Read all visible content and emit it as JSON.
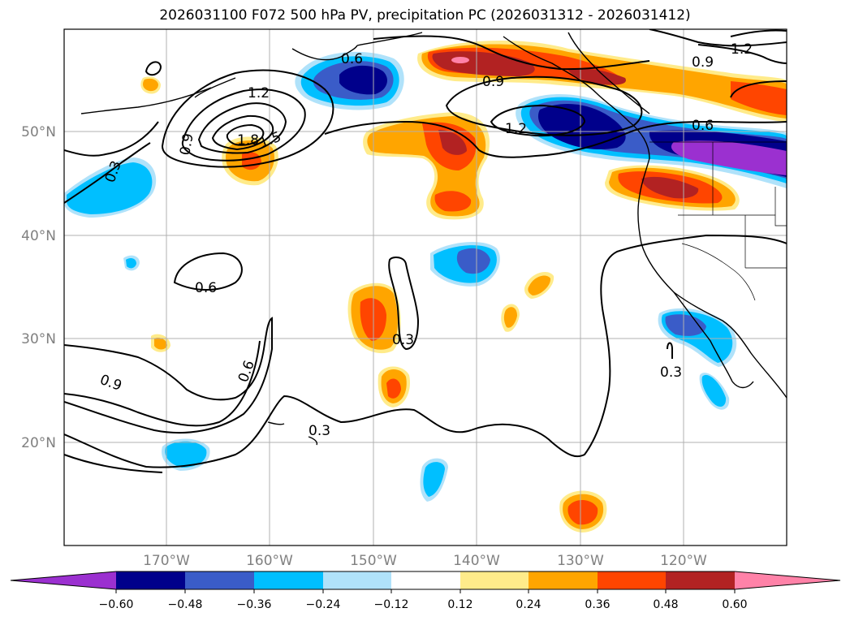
{
  "title": "2026031100 F072 500 hPa PV, precipitation PC (2026031312 - 2026031412)",
  "map": {
    "lat_labels": [
      "50°N",
      "40°N",
      "30°N",
      "20°N"
    ],
    "lon_labels": [
      "170°W",
      "160°W",
      "150°W",
      "140°W",
      "130°W",
      "120°W"
    ]
  },
  "contour_labels": [
    "1.2",
    "0.9",
    "0.6",
    "1.2",
    "1.8",
    "1.5",
    "0.9",
    "0.3",
    "1.2",
    "0.6",
    "0.6",
    "0.6",
    "0.9",
    "0.3",
    "0.3",
    "0.3"
  ],
  "colorbar": {
    "ticks": [
      "−0.60",
      "−0.48",
      "−0.36",
      "−0.24",
      "−0.12",
      "0.12",
      "0.24",
      "0.36",
      "0.48",
      "0.60"
    ],
    "colors": [
      "#9b30d0",
      "#00008b",
      "#3a5cc8",
      "#00bfff",
      "#b0e2fa",
      "#ffffff",
      "#ffeb8a",
      "#ffa500",
      "#ff4500",
      "#b22222",
      "#ff82a8"
    ]
  }
}
